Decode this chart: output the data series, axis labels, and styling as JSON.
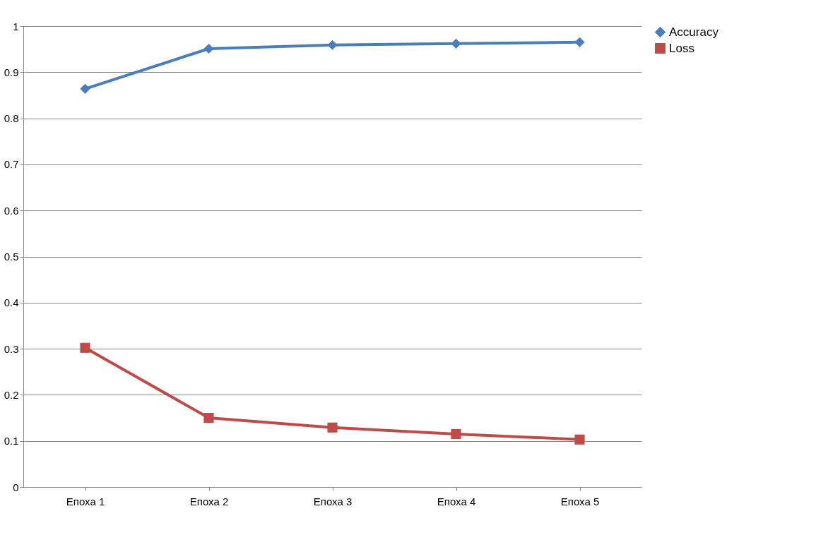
{
  "chart_data": {
    "type": "line",
    "categories": [
      "Епоха 1",
      "Епоха 2",
      "Епоха 3",
      "Епоха 4",
      "Епоха 5"
    ],
    "series": [
      {
        "name": "Accuracy",
        "color": "#4a7ebb",
        "marker": "diamond",
        "values": [
          0.864,
          0.951,
          0.959,
          0.962,
          0.965
        ]
      },
      {
        "name": "Loss",
        "color": "#be4b48",
        "marker": "square",
        "values": [
          0.302,
          0.15,
          0.129,
          0.115,
          0.103
        ]
      }
    ],
    "ylim": [
      0,
      1
    ],
    "yticks": [
      0,
      0.1,
      0.2,
      0.3,
      0.4,
      0.5,
      0.6,
      0.7,
      0.8,
      0.9,
      1
    ],
    "grid": "y",
    "legend": "right",
    "line_style": "solid"
  }
}
